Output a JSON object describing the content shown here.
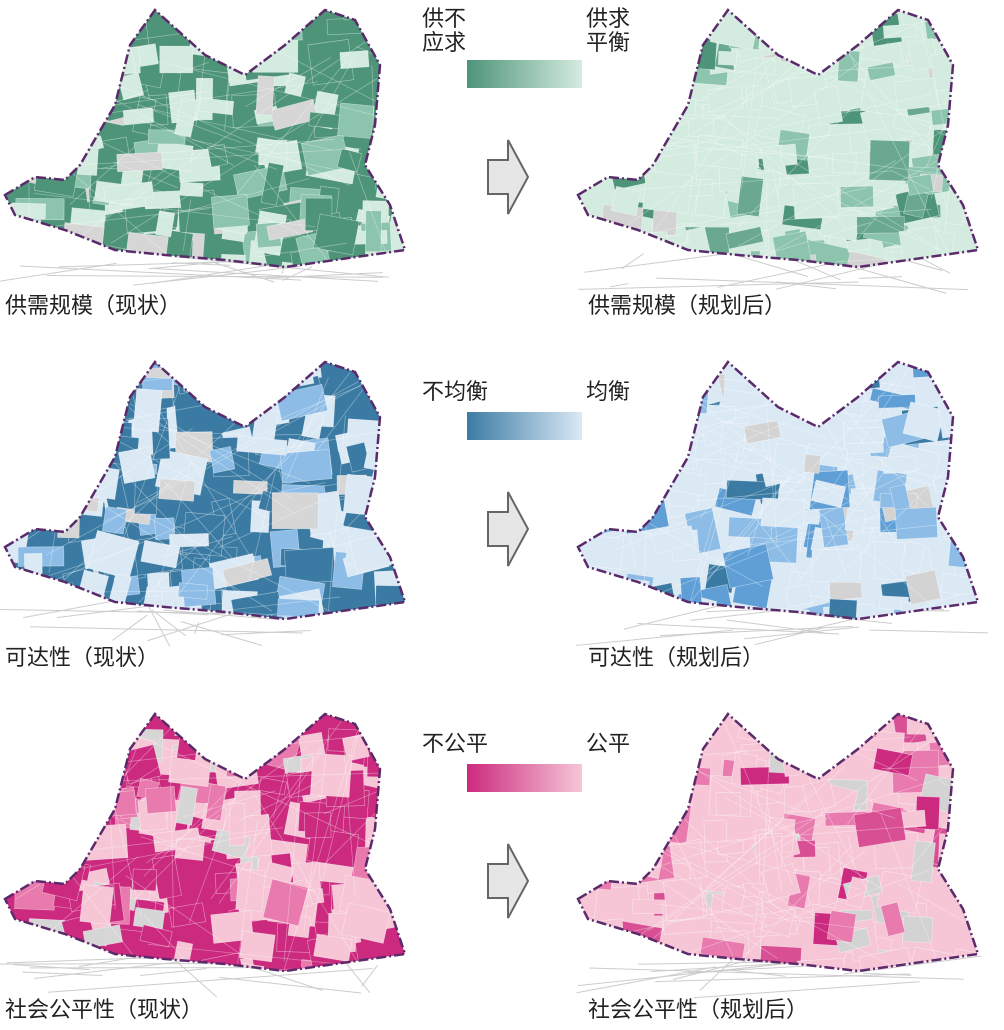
{
  "rows": [
    {
      "legend": {
        "low": [
          "供不",
          "应求"
        ],
        "high": [
          "供求",
          "平衡"
        ]
      },
      "captions": {
        "before": "供需规模（现状）",
        "after": "供需规模（规划后）"
      }
    },
    {
      "legend": {
        "low": [
          "不均衡"
        ],
        "high": [
          "均衡"
        ]
      },
      "captions": {
        "before": "可达性（现状）",
        "after": "可达性（规划后）"
      }
    },
    {
      "legend": {
        "low": [
          "不公平"
        ],
        "high": [
          "公平"
        ]
      },
      "captions": {
        "before": "社会公平性（现状）",
        "after": "社会公平性（规划后）"
      }
    }
  ]
}
